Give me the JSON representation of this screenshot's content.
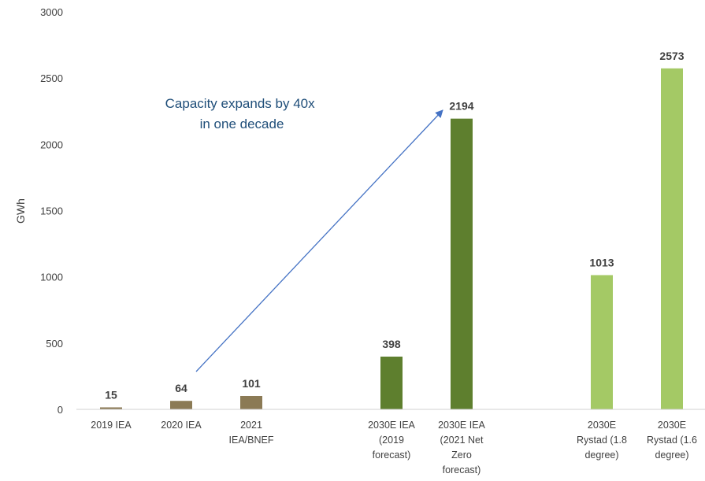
{
  "chart_data": {
    "type": "bar",
    "title": "",
    "xlabel": "",
    "ylabel": "GWh",
    "ylim": [
      0,
      3000
    ],
    "yticks": [
      "0",
      "500",
      "1000",
      "1500",
      "2000",
      "2500",
      "3000"
    ],
    "grid": false,
    "legend": "none",
    "categories": [
      [
        "2019 IEA"
      ],
      [
        "2020 IEA"
      ],
      [
        "2021",
        "IEA/BNEF"
      ],
      [
        "2030E IEA",
        "(2019",
        "forecast)"
      ],
      [
        "2030E IEA",
        "(2021 Net",
        "Zero",
        "forecast)"
      ],
      [
        "2030E",
        "Rystad (1.8",
        "degree)"
      ],
      [
        "2030E",
        "Rystad (1.6",
        "degree)"
      ]
    ],
    "values": [
      15,
      64,
      101,
      398,
      2194,
      1013,
      2573
    ],
    "data_labels": [
      "15",
      "64",
      "101",
      "398",
      "2194",
      "1013",
      "2573"
    ],
    "bar_colors": [
      "#8b7a55",
      "#8b7a55",
      "#8b7a55",
      "#5e7f2e",
      "#5e7f2e",
      "#a4c965",
      "#a4c965"
    ],
    "annotation": {
      "lines": [
        "Capacity expands by 40x",
        "in one decade"
      ],
      "arrow_from_category": 1,
      "arrow_to_category": 4,
      "color": "#1f4e79",
      "arrow_color": "#4472c4"
    }
  }
}
